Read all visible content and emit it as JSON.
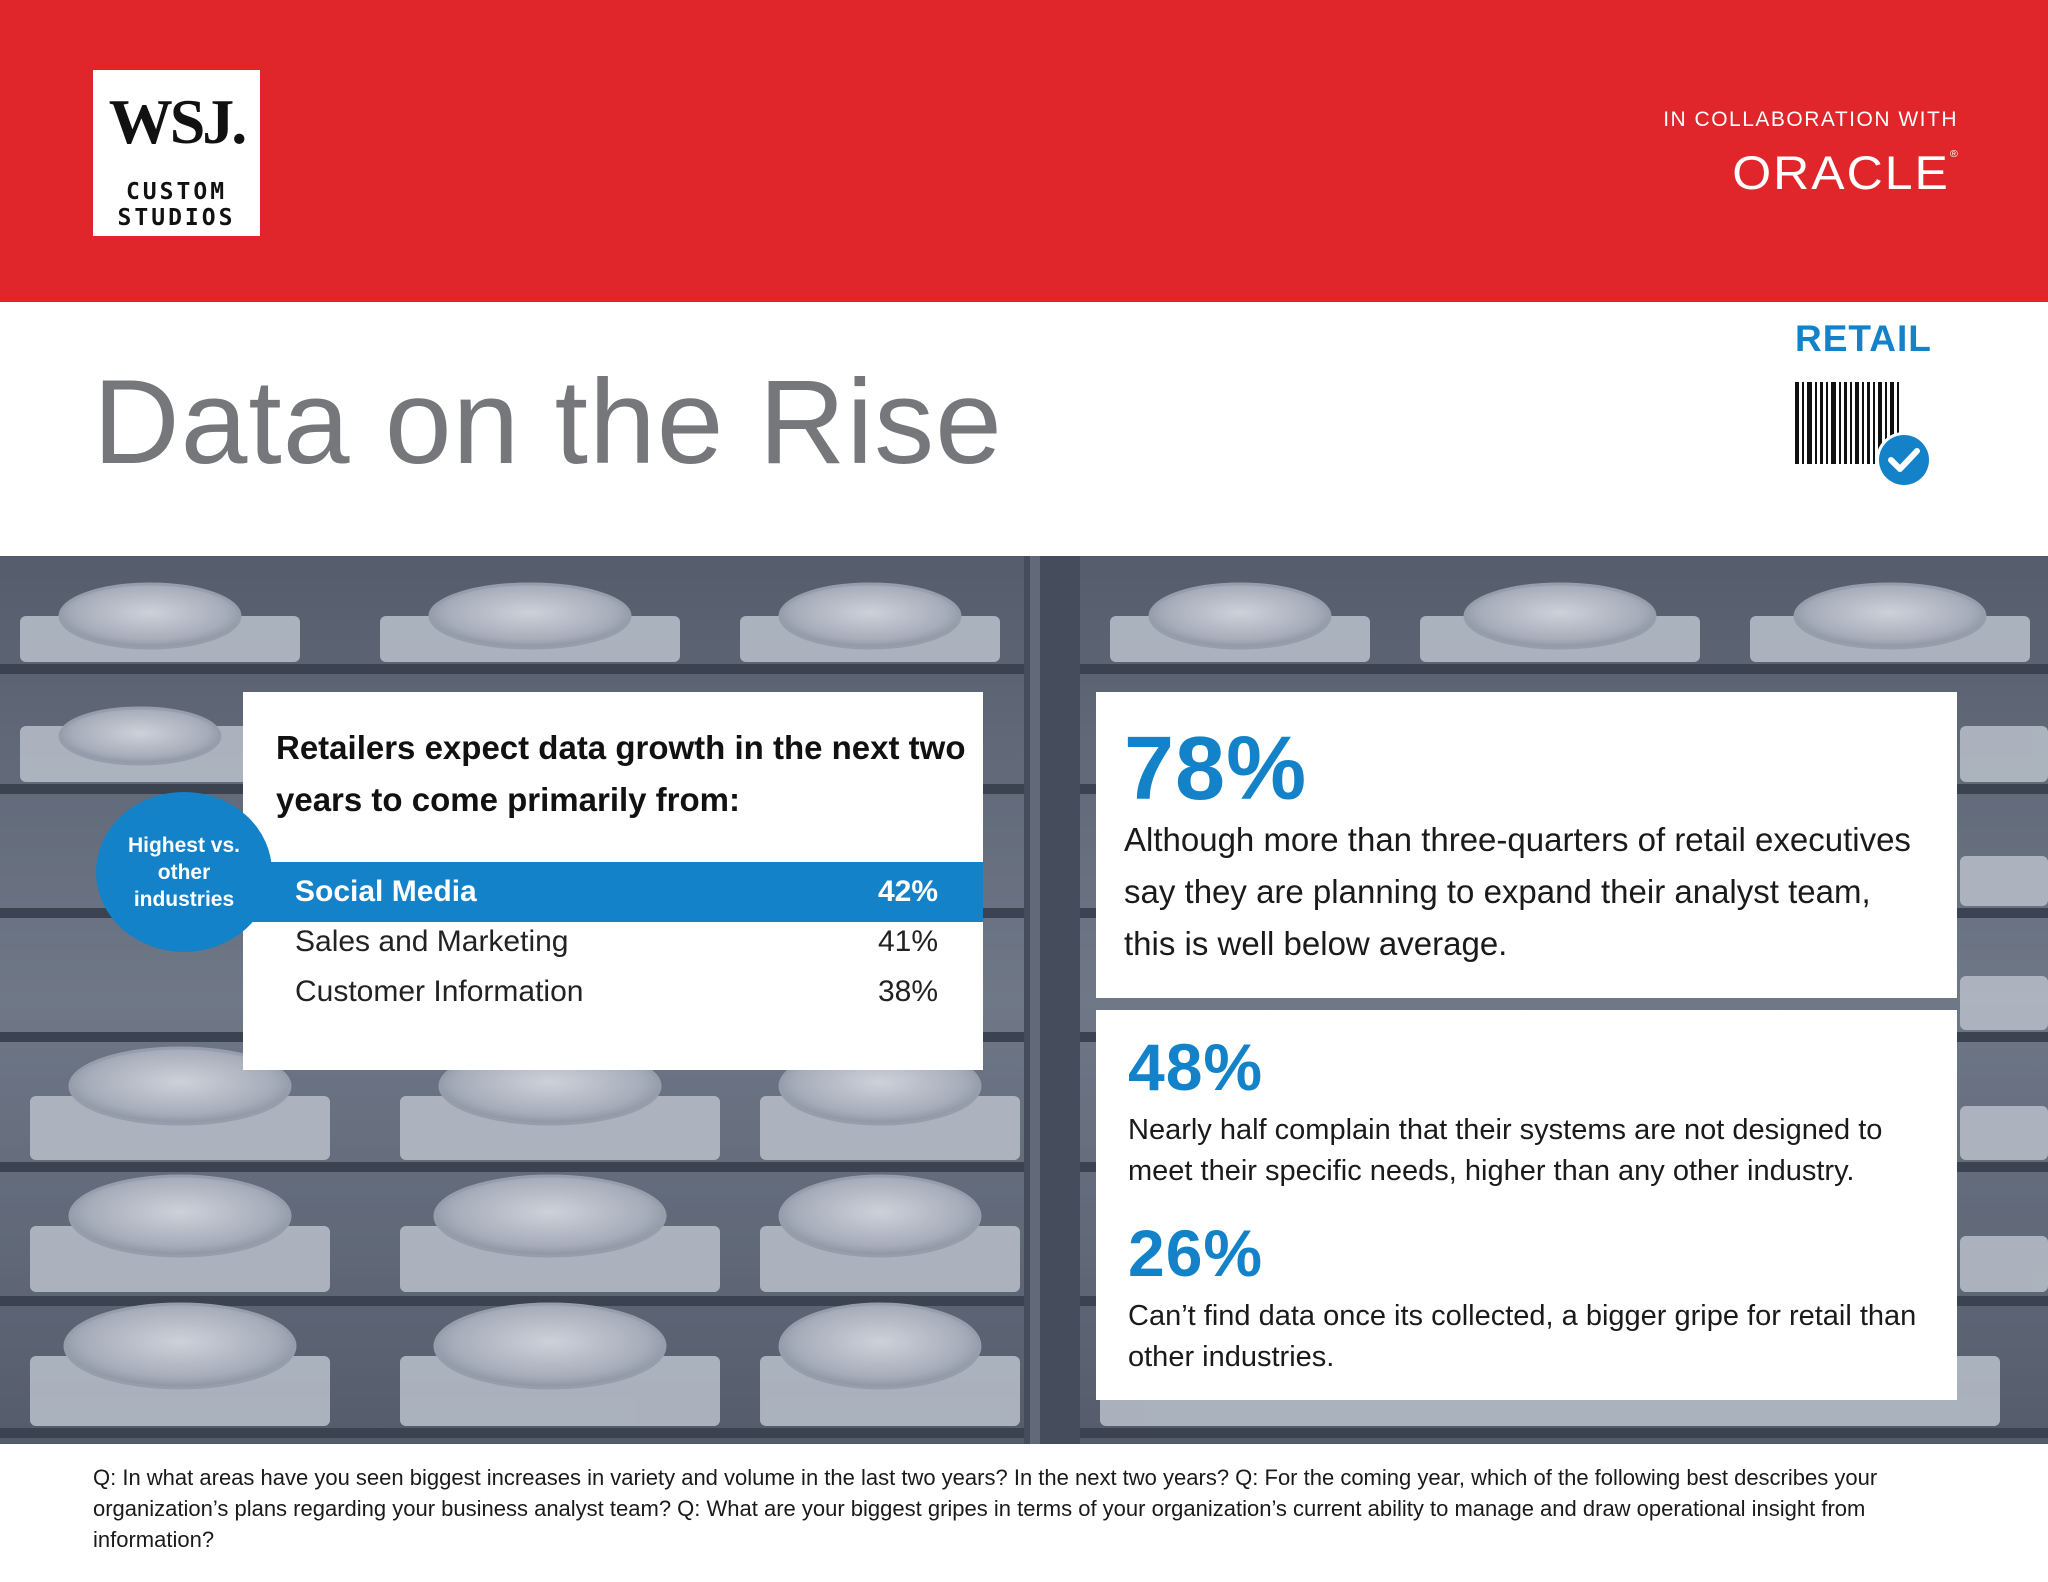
{
  "header": {
    "logo_main": "WSJ.",
    "logo_sub_1": "CUSTOM",
    "logo_sub_2": "STUDIOS",
    "collab_label": "IN COLLABORATION WITH",
    "partner": "ORACLE",
    "partner_mark": "®",
    "brand_color": "#e0262a"
  },
  "page": {
    "title": "Data on the Rise",
    "category": "RETAIL",
    "accent_color": "#1382c8",
    "icons": [
      "barcode-icon",
      "checkmark-icon"
    ]
  },
  "growth": {
    "heading": "Retailers expect data growth in the next two years to come primarily from:",
    "badge": "Highest vs. other industries",
    "rows": [
      {
        "label": "Social Media",
        "value": "42%",
        "highlighted": true
      },
      {
        "label": "Sales and Marketing",
        "value": "41%",
        "highlighted": false
      },
      {
        "label": "Customer Information",
        "value": "38%",
        "highlighted": false
      }
    ]
  },
  "stats": [
    {
      "value": "78%",
      "text": "Although more than three-quarters of retail executives say they are planning to expand their analyst team, this is well below average."
    },
    {
      "value": "48%",
      "text": "Nearly half complain that their systems are not designed to meet their specific needs, higher than any other industry."
    },
    {
      "value": "26%",
      "text": "Can’t find data once its collected, a bigger gripe for retail than other industries."
    }
  ],
  "footnote": "Q: In what areas have you seen biggest increases in variety and volume in the last two years? In the next two years? Q: For the coming year, which of the following best describes your organization’s plans regarding your business analyst team? Q: What are your biggest gripes in terms of your organization’s current ability to manage and draw operational insight from information?"
}
